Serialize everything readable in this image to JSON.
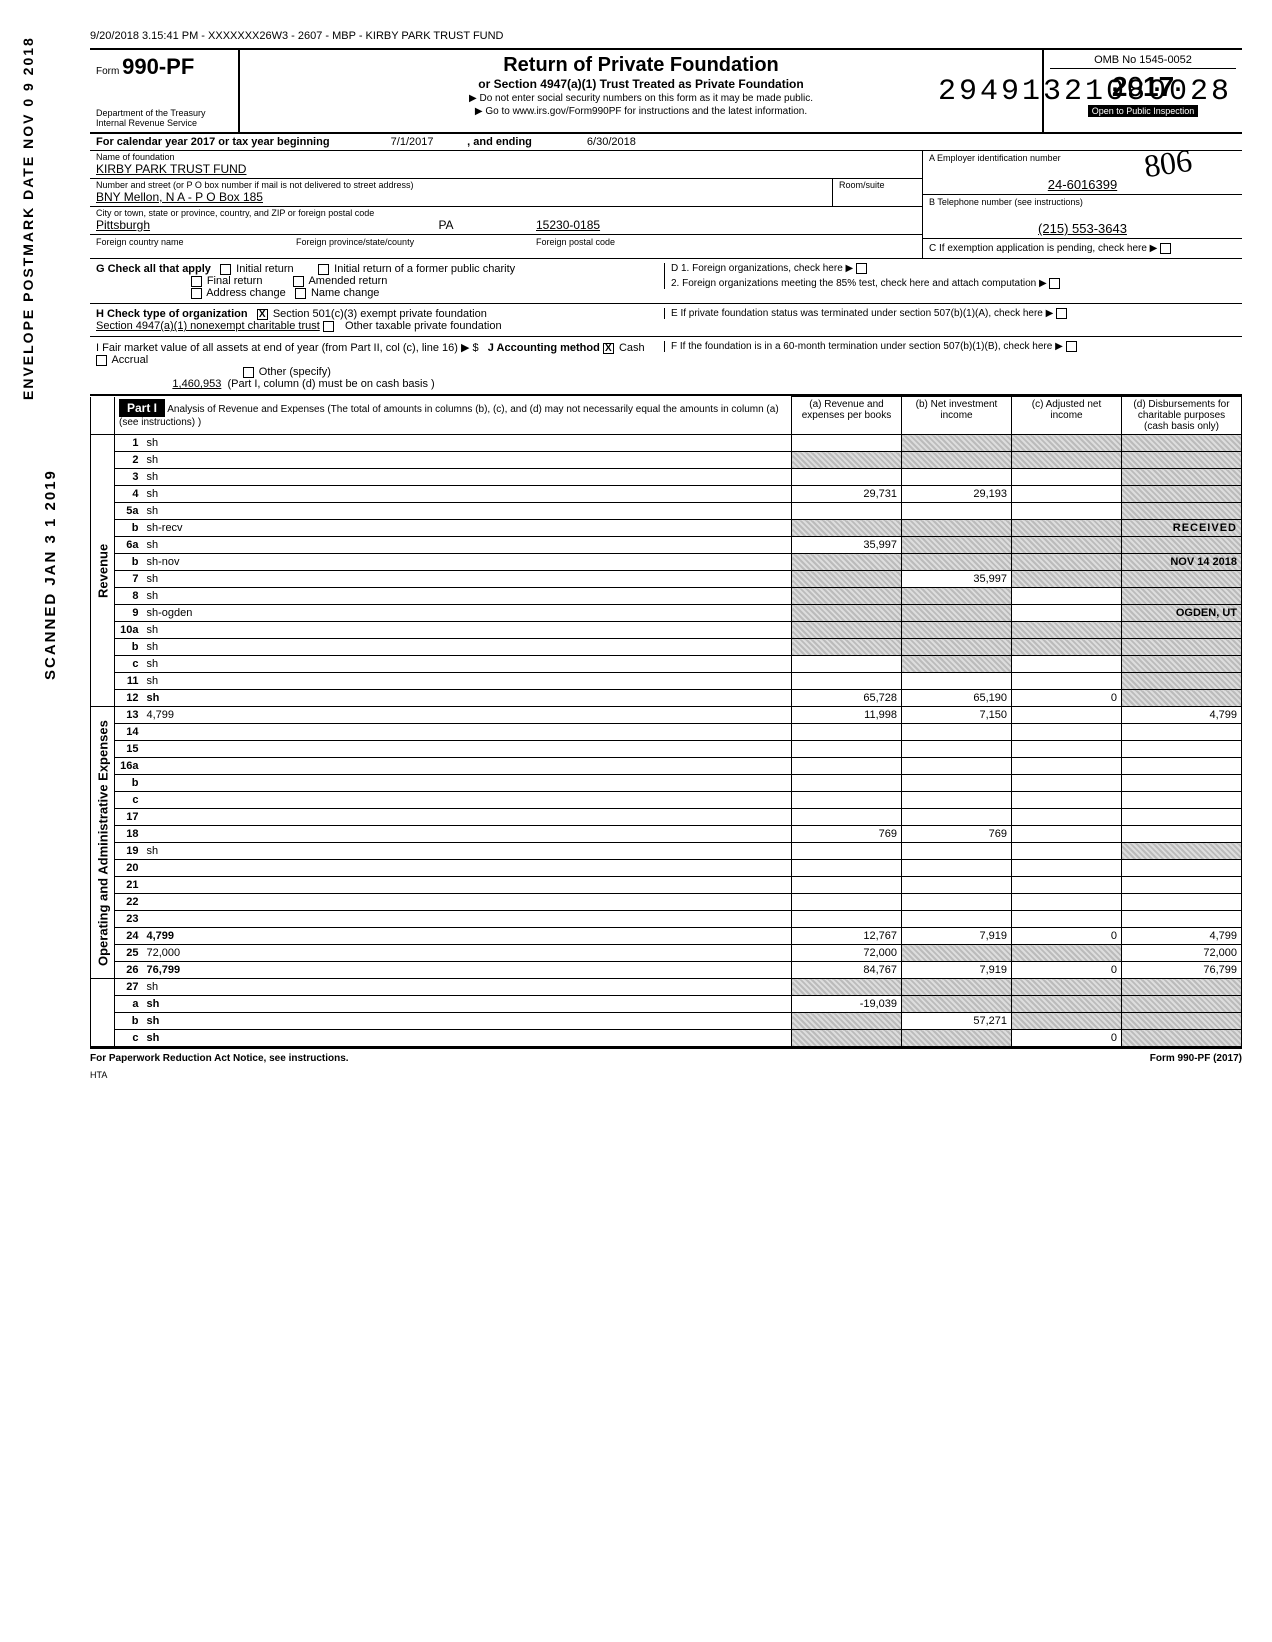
{
  "header_stamp": "9/20/2018 3.15:41 PM - XXXXXXX26W3 - 2607 - MBP - KIRBY PARK TRUST FUND",
  "big_number": "29491321080028",
  "side_postmark": "ENVELOPE POSTMARK DATE NOV 0 9 2018",
  "side_scanned": "SCANNED JAN 3 1 2019",
  "form": {
    "form_label": "Form",
    "form_no": "990-PF",
    "dept": "Department of the Treasury",
    "irs": "Internal Revenue Service",
    "title": "Return of Private Foundation",
    "subtitle": "or Section 4947(a)(1) Trust Treated as Private Foundation",
    "warn1": "▶  Do not enter social security numbers on this form as it may be made public.",
    "warn2": "▶  Go to www.irs.gov/Form990PF for instructions and the latest information.",
    "omb": "OMB No 1545-0052",
    "year": "2017",
    "open": "Open to Public Inspection",
    "cursive": "806"
  },
  "cal": {
    "label_a": "For calendar year 2017 or tax year beginning",
    "begin": "7/1/2017",
    "label_b": ", and ending",
    "end": "6/30/2018"
  },
  "name": {
    "label": "Name of foundation",
    "value": "KIRBY PARK TRUST FUND",
    "addr_label": "Number and street (or P O box number if mail is not delivered to street address)",
    "addr": "BNY Mellon, N A  - P O Box 185",
    "room_label": "Room/suite",
    "city_label": "City or town, state or province, country, and ZIP or foreign postal code",
    "city": "Pittsburgh",
    "state": "PA",
    "zip": "15230-0185",
    "foreign_country_label": "Foreign country name",
    "foreign_prov_label": "Foreign province/state/county",
    "foreign_postal_label": "Foreign postal code"
  },
  "ein": {
    "label": "A Employer identification number",
    "value": "24-6016399",
    "tel_label": "B Telephone number (see instructions)",
    "tel": "(215) 553-3643",
    "c_label": "C  If exemption application is pending, check here  ▶"
  },
  "g": {
    "label": "G  Check all that apply",
    "initial": "Initial return",
    "final": "Final return",
    "addr_change": "Address change",
    "initial_former": "Initial return of a former public charity",
    "amended": "Amended return",
    "name_change": "Name change"
  },
  "d": {
    "d1": "D  1. Foreign organizations, check here",
    "d2": "2. Foreign organizations meeting the 85% test, check here and attach computation"
  },
  "h": {
    "label": "H  Check type of organization",
    "opt1": "Section 501(c)(3) exempt private foundation",
    "opt2": "Section 4947(a)(1) nonexempt charitable trust",
    "opt3": "Other taxable private foundation"
  },
  "e": "E  If private foundation status was terminated under section 507(b)(1)(A), check here",
  "i": {
    "label": "I   Fair market value of all assets at end of year (from Part II, col (c), line 16) ▶ $",
    "value": "1,460,953",
    "j_label": "J  Accounting method",
    "cash": "Cash",
    "accrual": "Accrual",
    "other": "Other (specify)",
    "note": "(Part I, column (d) must be on cash basis )"
  },
  "f": "F  If the foundation is in a 60-month termination under section 507(b)(1)(B), check here",
  "part1": {
    "title": "Part I",
    "desc": "Analysis of Revenue and Expenses (The total of amounts in columns (b), (c), and (d) may not necessarily equal the amounts in column (a) (see instructions) )",
    "col_a": "(a) Revenue and expenses per books",
    "col_b": "(b) Net investment income",
    "col_c": "(c) Adjusted net income",
    "col_d": "(d) Disbursements for charitable purposes (cash basis only)"
  },
  "rev_label": "Revenue",
  "exp_label": "Operating and Administrative Expenses",
  "rows": [
    {
      "n": "1",
      "d": "sh",
      "a": "",
      "b": "sh",
      "c": "sh"
    },
    {
      "n": "2",
      "d": "sh",
      "a": "sh",
      "b": "sh",
      "c": "sh"
    },
    {
      "n": "3",
      "d": "sh",
      "a": "",
      "b": "",
      "c": ""
    },
    {
      "n": "4",
      "d": "sh",
      "a": "29,731",
      "b": "29,193",
      "c": ""
    },
    {
      "n": "5a",
      "d": "sh",
      "a": "",
      "b": "",
      "c": ""
    },
    {
      "n": "b",
      "d": "sh-recv",
      "a": "sh",
      "b": "sh",
      "c": "sh"
    },
    {
      "n": "6a",
      "d": "sh",
      "a": "35,997",
      "b": "sh",
      "c": "sh"
    },
    {
      "n": "b",
      "d": "sh-nov",
      "a": "sh",
      "b": "sh",
      "c": "sh"
    },
    {
      "n": "7",
      "d": "sh",
      "a": "sh",
      "b": "35,997",
      "c": "sh"
    },
    {
      "n": "8",
      "d": "sh",
      "a": "sh",
      "b": "sh",
      "c": ""
    },
    {
      "n": "9",
      "d": "sh-ogden",
      "a": "sh",
      "b": "sh",
      "c": ""
    },
    {
      "n": "10a",
      "d": "sh",
      "a": "sh",
      "b": "sh",
      "c": "sh"
    },
    {
      "n": "b",
      "d": "sh",
      "a": "sh",
      "b": "sh",
      "c": "sh"
    },
    {
      "n": "c",
      "d": "sh",
      "a": "",
      "b": "sh",
      "c": ""
    },
    {
      "n": "11",
      "d": "sh",
      "a": "",
      "b": "",
      "c": ""
    },
    {
      "n": "12",
      "d": "sh",
      "a": "65,728",
      "b": "65,190",
      "c": "0",
      "bold": true
    }
  ],
  "exp_rows": [
    {
      "n": "13",
      "d": "4,799",
      "a": "11,998",
      "b": "7,150",
      "c": ""
    },
    {
      "n": "14",
      "d": "",
      "a": "",
      "b": "",
      "c": ""
    },
    {
      "n": "15",
      "d": "",
      "a": "",
      "b": "",
      "c": ""
    },
    {
      "n": "16a",
      "d": "",
      "a": "",
      "b": "",
      "c": ""
    },
    {
      "n": "b",
      "d": "",
      "a": "",
      "b": "",
      "c": ""
    },
    {
      "n": "c",
      "d": "",
      "a": "",
      "b": "",
      "c": ""
    },
    {
      "n": "17",
      "d": "",
      "a": "",
      "b": "",
      "c": ""
    },
    {
      "n": "18",
      "d": "",
      "a": "769",
      "b": "769",
      "c": ""
    },
    {
      "n": "19",
      "d": "sh",
      "a": "",
      "b": "",
      "c": ""
    },
    {
      "n": "20",
      "d": "",
      "a": "",
      "b": "",
      "c": ""
    },
    {
      "n": "21",
      "d": "",
      "a": "",
      "b": "",
      "c": ""
    },
    {
      "n": "22",
      "d": "",
      "a": "",
      "b": "",
      "c": ""
    },
    {
      "n": "23",
      "d": "",
      "a": "",
      "b": "",
      "c": ""
    },
    {
      "n": "24",
      "d": "4,799",
      "a": "12,767",
      "b": "7,919",
      "c": "0",
      "bold": true
    },
    {
      "n": "25",
      "d": "72,000",
      "a": "72,000",
      "b": "sh",
      "c": "sh"
    },
    {
      "n": "26",
      "d": "76,799",
      "a": "84,767",
      "b": "7,919",
      "c": "0",
      "bold": true
    }
  ],
  "bottom_rows": [
    {
      "n": "27",
      "d": "sh",
      "a": "sh",
      "b": "sh",
      "c": "sh"
    },
    {
      "n": "a",
      "d": "sh",
      "a": "-19,039",
      "b": "sh",
      "c": "sh",
      "bold": true
    },
    {
      "n": "b",
      "d": "sh",
      "a": "sh",
      "b": "57,271",
      "c": "sh",
      "bold": true
    },
    {
      "n": "c",
      "d": "sh",
      "a": "sh",
      "b": "sh",
      "c": "0",
      "bold": true
    }
  ],
  "footer": {
    "left": "For Paperwork Reduction Act Notice, see instructions.",
    "mid": "HTA",
    "right": "Form 990-PF (2017)"
  },
  "stamp_recv": "RECEIVED",
  "stamp_nov": "NOV 14 2018",
  "stamp_ogden": "OGDEN, UT"
}
